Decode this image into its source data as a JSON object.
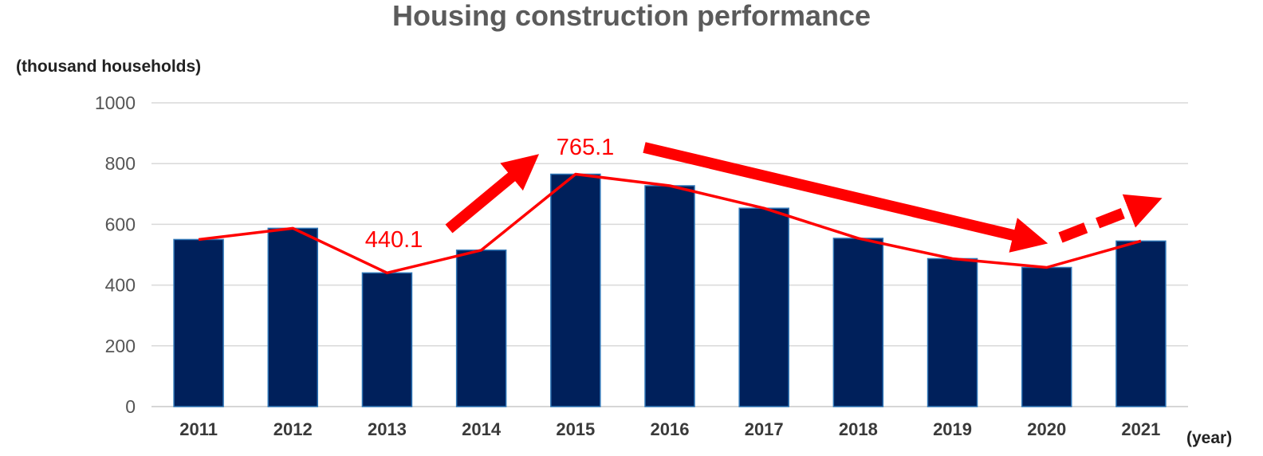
{
  "chart_data": {
    "type": "bar",
    "title": "Housing construction performance",
    "ylabel": "(thousand households)",
    "xlabel": "(year)",
    "ylim": [
      0,
      1000
    ],
    "yticks": [
      "0",
      "200",
      "400",
      "600",
      "800",
      "1000"
    ],
    "grid": true,
    "categories": [
      "2011",
      "2012",
      "2013",
      "2014",
      "2015",
      "2016",
      "2017",
      "2018",
      "2019",
      "2020",
      "2021"
    ],
    "series": [
      {
        "values": [
          550,
          587,
          440.1,
          515,
          765.1,
          727,
          653,
          554,
          487,
          458,
          545
        ]
      }
    ],
    "annotations": [
      {
        "label": "440.1",
        "category": "2013"
      },
      {
        "label": "765.1",
        "category": "2015"
      }
    ],
    "colors": {
      "bar": "#00205b",
      "bar_edge": "#2e75b6",
      "trend_line": "#ff0000",
      "grid": "#d9d9d9"
    }
  }
}
